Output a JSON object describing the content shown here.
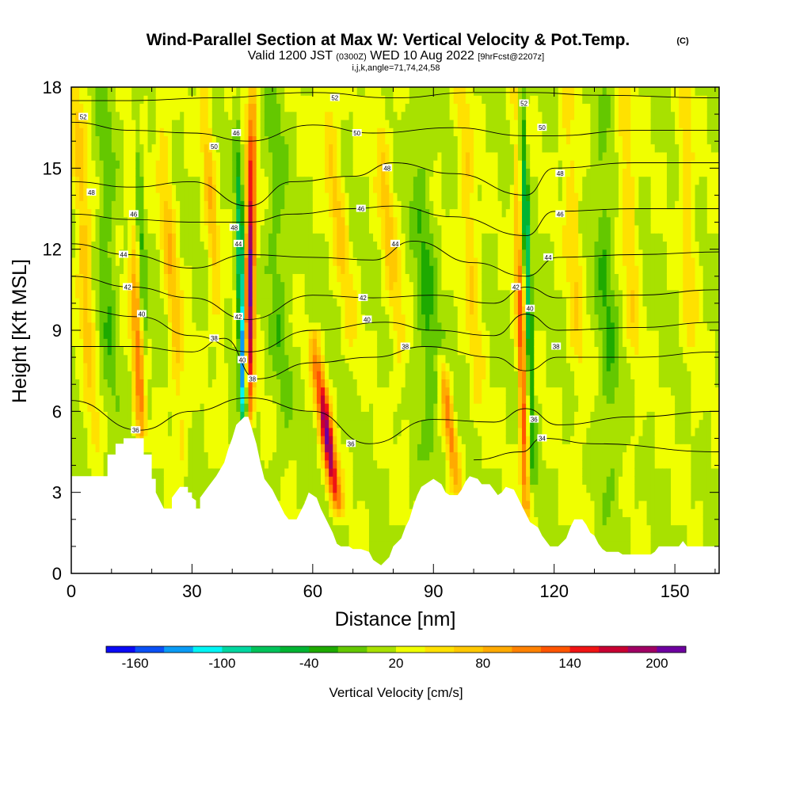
{
  "chart_data": {
    "type": "heatmap",
    "title": "Wind-Parallel Section at Max W: Vertical Velocity & Pot.Temp.",
    "title_badge": "(C)",
    "subtitle_main_a": "Valid 1200 JST",
    "subtitle_small_a": "(0300Z)",
    "subtitle_main_b": "WED 10 Aug 2022",
    "subtitle_small_b": "[9hrFcst@2207z]",
    "subtitle_line3": "i,j,k,angle=71,74,24,58",
    "xlabel": "Distance [nm]",
    "ylabel": "Height [Kft MSL]",
    "xlim": [
      0,
      161
    ],
    "ylim": [
      0,
      18
    ],
    "x_ticks": [
      0,
      30,
      60,
      90,
      120,
      150
    ],
    "x_tick_labels": [
      "0",
      "30",
      "60",
      "90",
      "120",
      "150"
    ],
    "y_ticks": [
      0,
      3,
      6,
      9,
      12,
      15,
      18
    ],
    "y_tick_labels": [
      "0",
      "3",
      "6",
      "9",
      "12",
      "15",
      "18"
    ],
    "colorbar": {
      "label": "Vertical Velocity [cm/s]",
      "min": -180,
      "max": 220,
      "colors": [
        "#0a0af5",
        "#0a50f5",
        "#0a9bf5",
        "#00f5f5",
        "#00d7a0",
        "#00c35a",
        "#00b432",
        "#1eaa00",
        "#64c800",
        "#a8e100",
        "#f0ff00",
        "#ffe100",
        "#ffc800",
        "#ffaa00",
        "#ff8200",
        "#ff5500",
        "#f01414",
        "#c80032",
        "#a00064",
        "#6e00a0"
      ],
      "tick_values": [
        -160,
        -100,
        -40,
        20,
        80,
        140,
        200
      ],
      "tick_labels": [
        "-160",
        "-100",
        "-40",
        "20",
        "80",
        "140",
        "200"
      ]
    },
    "terrain_profile": [
      [
        0,
        3.6
      ],
      [
        9,
        3.6
      ],
      [
        9,
        4.4
      ],
      [
        11,
        4.4
      ],
      [
        11,
        4.8
      ],
      [
        13,
        4.8
      ],
      [
        13,
        5.0
      ],
      [
        18,
        5.0
      ],
      [
        18,
        4.4
      ],
      [
        20,
        4.4
      ],
      [
        20,
        3.5
      ],
      [
        21,
        3.5
      ],
      [
        21,
        3.0
      ],
      [
        22,
        2.7
      ],
      [
        23,
        2.4
      ],
      [
        25,
        2.4
      ],
      [
        25,
        2.8
      ],
      [
        27,
        3.2
      ],
      [
        29,
        3.2
      ],
      [
        29,
        3.0
      ],
      [
        30,
        3.0
      ],
      [
        30,
        2.8
      ],
      [
        31,
        2.7
      ],
      [
        31,
        2.4
      ],
      [
        32,
        2.4
      ],
      [
        32,
        2.8
      ],
      [
        34,
        3.2
      ],
      [
        36,
        3.6
      ],
      [
        38,
        4.1
      ],
      [
        39,
        4.6
      ],
      [
        40,
        5.0
      ],
      [
        41,
        5.5
      ],
      [
        43,
        5.8
      ],
      [
        44,
        5.8
      ],
      [
        46,
        4.8
      ],
      [
        47,
        4.1
      ],
      [
        48,
        3.5
      ],
      [
        50,
        3.1
      ],
      [
        51,
        2.8
      ],
      [
        52,
        2.5
      ],
      [
        53,
        2.2
      ],
      [
        54,
        2.0
      ],
      [
        56,
        2.0
      ],
      [
        57,
        2.3
      ],
      [
        58,
        2.6
      ],
      [
        59,
        3.0
      ],
      [
        61,
        2.8
      ],
      [
        62,
        2.4
      ],
      [
        63,
        2.1
      ],
      [
        64,
        1.8
      ],
      [
        65,
        1.5
      ],
      [
        66,
        1.1
      ],
      [
        67,
        1.0
      ],
      [
        69,
        1.0
      ],
      [
        70,
        0.9
      ],
      [
        72,
        0.9
      ],
      [
        74,
        0.8
      ],
      [
        75,
        0.5
      ],
      [
        76,
        0.4
      ],
      [
        77,
        0.3
      ],
      [
        79,
        0.6
      ],
      [
        80,
        1.0
      ],
      [
        82,
        1.3
      ],
      [
        83,
        1.7
      ],
      [
        84,
        2.0
      ],
      [
        85,
        2.5
      ],
      [
        86,
        2.9
      ],
      [
        87,
        3.2
      ],
      [
        90,
        3.5
      ],
      [
        92,
        3.3
      ],
      [
        93,
        3.0
      ],
      [
        94,
        2.9
      ],
      [
        96,
        2.9
      ],
      [
        97,
        3.1
      ],
      [
        98,
        3.4
      ],
      [
        99,
        3.6
      ],
      [
        101,
        3.5
      ],
      [
        102,
        3.3
      ],
      [
        104,
        3.3
      ],
      [
        105,
        3.1
      ],
      [
        106,
        2.9
      ],
      [
        107,
        3.0
      ],
      [
        108,
        3.2
      ],
      [
        110,
        3.1
      ],
      [
        111,
        2.8
      ],
      [
        112,
        2.5
      ],
      [
        113,
        2.2
      ],
      [
        114,
        1.9
      ],
      [
        116,
        1.7
      ],
      [
        117,
        1.4
      ],
      [
        118,
        1.2
      ],
      [
        119,
        1.0
      ],
      [
        121,
        1.0
      ],
      [
        123,
        1.3
      ],
      [
        124,
        1.7
      ],
      [
        125,
        2.0
      ],
      [
        127,
        2.0
      ],
      [
        128,
        1.8
      ],
      [
        129,
        1.5
      ],
      [
        130,
        1.4
      ],
      [
        131,
        1.1
      ],
      [
        132,
        0.9
      ],
      [
        133,
        0.8
      ],
      [
        136,
        0.8
      ],
      [
        137,
        0.7
      ],
      [
        144,
        0.7
      ],
      [
        145,
        0.8
      ],
      [
        146,
        1.0
      ],
      [
        149,
        1.0
      ],
      [
        151,
        1.0
      ],
      [
        152,
        1.2
      ],
      [
        153,
        1.0
      ],
      [
        160,
        1.0
      ],
      [
        161,
        1.0
      ]
    ],
    "w_features": [
      {
        "x0": 44,
        "x1": 45,
        "amp": 190,
        "width": 1.2,
        "y_from": 5.6,
        "y_to": 18,
        "peak": 11
      },
      {
        "x0": 43,
        "x1": 41,
        "amp": -175,
        "width": 0.9,
        "y_from": 5.8,
        "y_to": 18,
        "peak": 8
      },
      {
        "x0": 17.5,
        "x1": 14,
        "amp": 90,
        "width": 1.5,
        "y_from": 5,
        "y_to": 18,
        "peak": 7
      },
      {
        "x0": 19,
        "x1": 16,
        "amp": -45,
        "width": 1.0,
        "y_from": 5,
        "y_to": 18,
        "peak": 12
      },
      {
        "x0": 66,
        "x1": 60,
        "amp": 175,
        "width": 1.6,
        "y_from": 2.5,
        "y_to": 9,
        "peak": 5
      },
      {
        "x0": 96,
        "x1": 92,
        "amp": 95,
        "width": 1.3,
        "y_from": 3,
        "y_to": 8,
        "peak": 5.5
      },
      {
        "x0": 113,
        "x1": 110,
        "amp": 115,
        "width": 1.0,
        "y_from": 2.3,
        "y_to": 18,
        "peak": 7
      },
      {
        "x0": 115,
        "x1": 112,
        "amp": -95,
        "width": 0.8,
        "y_from": 3.5,
        "y_to": 18,
        "peak": 11
      },
      {
        "x0": 6,
        "x1": 1,
        "amp": 55,
        "width": 1.8,
        "y_from": 3.6,
        "y_to": 18,
        "peak": 12
      },
      {
        "x0": 28,
        "x1": 22,
        "amp": 55,
        "width": 1.8,
        "y_from": 4,
        "y_to": 18,
        "peak": 11
      },
      {
        "x0": 38,
        "x1": 33,
        "amp": 50,
        "width": 1.5,
        "y_from": 5,
        "y_to": 18,
        "peak": 14
      },
      {
        "x0": 71,
        "x1": 63,
        "amp": 50,
        "width": 2.0,
        "y_from": 7,
        "y_to": 18,
        "peak": 14
      },
      {
        "x0": 83,
        "x1": 76,
        "amp": 45,
        "width": 2.0,
        "y_from": 5,
        "y_to": 18,
        "peak": 13
      },
      {
        "x0": 102,
        "x1": 97,
        "amp": 45,
        "width": 1.8,
        "y_from": 4,
        "y_to": 18,
        "peak": 13
      },
      {
        "x0": 128,
        "x1": 123,
        "amp": 40,
        "width": 2.0,
        "y_from": 2,
        "y_to": 18,
        "peak": 13
      },
      {
        "x0": 142,
        "x1": 137,
        "amp": 40,
        "width": 2.0,
        "y_from": 3,
        "y_to": 18,
        "peak": 14
      },
      {
        "x0": 156,
        "x1": 152,
        "amp": 35,
        "width": 2.0,
        "y_from": 3,
        "y_to": 18,
        "peak": 14
      },
      {
        "x0": 10,
        "x1": 8,
        "amp": -35,
        "width": 2.0,
        "y_from": 4,
        "y_to": 18,
        "peak": 12
      },
      {
        "x0": 53,
        "x1": 50,
        "amp": -30,
        "width": 2.5,
        "y_from": 3,
        "y_to": 18,
        "peak": 12
      },
      {
        "x0": 90,
        "x1": 86,
        "amp": -40,
        "width": 2.5,
        "y_from": 4,
        "y_to": 18,
        "peak": 10
      },
      {
        "x0": 135,
        "x1": 131,
        "amp": -35,
        "width": 2.5,
        "y_from": 2,
        "y_to": 18,
        "peak": 10
      }
    ],
    "theta_levels": [
      34,
      36,
      38,
      40,
      42,
      44,
      46,
      48,
      50,
      52
    ],
    "theta_lines": [
      {
        "level": 52,
        "points": [
          [
            0,
            17.5
          ],
          [
            15,
            17.5
          ],
          [
            35,
            17.6
          ],
          [
            60,
            17.8
          ],
          [
            80,
            17.6
          ],
          [
            100,
            17.8
          ],
          [
            115,
            17.8
          ],
          [
            130,
            17.7
          ],
          [
            161,
            17.6
          ]
        ]
      },
      {
        "level": 50,
        "points": [
          [
            0,
            16.7
          ],
          [
            15,
            16.4
          ],
          [
            30,
            16.3
          ],
          [
            44,
            16.0
          ],
          [
            60,
            16.6
          ],
          [
            75,
            16.3
          ],
          [
            95,
            16.5
          ],
          [
            113,
            16.2
          ],
          [
            120,
            16.2
          ],
          [
            140,
            16.4
          ],
          [
            161,
            16.4
          ]
        ]
      },
      {
        "level": 48,
        "points": [
          [
            0,
            14.5
          ],
          [
            15,
            14.3
          ],
          [
            30,
            14.5
          ],
          [
            44,
            13.6
          ],
          [
            55,
            14.5
          ],
          [
            70,
            14.7
          ],
          [
            80,
            15.2
          ],
          [
            95,
            14.8
          ],
          [
            113,
            14.0
          ],
          [
            120,
            15.0
          ],
          [
            140,
            15.2
          ],
          [
            161,
            15.2
          ]
        ]
      },
      {
        "level": 46,
        "points": [
          [
            0,
            13.3
          ],
          [
            15,
            13.1
          ],
          [
            30,
            13.0
          ],
          [
            44,
            13.0
          ],
          [
            55,
            13.3
          ],
          [
            70,
            13.5
          ],
          [
            80,
            13.6
          ],
          [
            95,
            13.2
          ],
          [
            113,
            12.5
          ],
          [
            120,
            13.4
          ],
          [
            140,
            13.5
          ],
          [
            161,
            13.5
          ]
        ]
      },
      {
        "level": 44,
        "points": [
          [
            0,
            12.2
          ],
          [
            14,
            11.8
          ],
          [
            30,
            11.3
          ],
          [
            44,
            11.8
          ],
          [
            60,
            11.7
          ],
          [
            75,
            11.6
          ],
          [
            85,
            12.3
          ],
          [
            100,
            11.5
          ],
          [
            113,
            11.0
          ],
          [
            121,
            11.7
          ],
          [
            140,
            11.8
          ],
          [
            161,
            11.9
          ]
        ]
      },
      {
        "level": 42,
        "points": [
          [
            0,
            11.0
          ],
          [
            15,
            10.6
          ],
          [
            30,
            10.2
          ],
          [
            44,
            9.4
          ],
          [
            60,
            10.3
          ],
          [
            75,
            10.2
          ],
          [
            90,
            10.3
          ],
          [
            105,
            10.0
          ],
          [
            113,
            10.6
          ],
          [
            121,
            10.2
          ],
          [
            140,
            10.3
          ],
          [
            161,
            10.5
          ]
        ]
      },
      {
        "level": 40,
        "points": [
          [
            0,
            9.8
          ],
          [
            17,
            9.5
          ],
          [
            30,
            8.8
          ],
          [
            44,
            8.2
          ],
          [
            60,
            9.0
          ],
          [
            78,
            9.3
          ],
          [
            90,
            9.0
          ],
          [
            105,
            8.8
          ],
          [
            113,
            9.6
          ],
          [
            121,
            9.0
          ],
          [
            140,
            9.1
          ],
          [
            161,
            9.3
          ]
        ]
      },
      {
        "level": 38,
        "points": [
          [
            0,
            8.4
          ],
          [
            15,
            8.4
          ],
          [
            30,
            8.2
          ],
          [
            38,
            8.7
          ],
          [
            46,
            7.2
          ],
          [
            60,
            7.8
          ],
          [
            75,
            8.0
          ],
          [
            88,
            8.4
          ],
          [
            105,
            8.0
          ],
          [
            113,
            7.5
          ],
          [
            121,
            8.0
          ],
          [
            140,
            8.0
          ],
          [
            161,
            8.2
          ]
        ]
      },
      {
        "level": 36,
        "points": [
          [
            0,
            6.4
          ],
          [
            17,
            5.3
          ],
          [
            30,
            6.0
          ],
          [
            44,
            6.5
          ],
          [
            60,
            6.0
          ],
          [
            74,
            4.8
          ],
          [
            90,
            5.7
          ],
          [
            105,
            5.6
          ],
          [
            113,
            6.1
          ],
          [
            121,
            5.5
          ],
          [
            140,
            5.8
          ],
          [
            161,
            6.0
          ]
        ]
      },
      {
        "level": 34,
        "points": [
          [
            100,
            4.2
          ],
          [
            112,
            4.5
          ],
          [
            117,
            5.0
          ],
          [
            130,
            4.8
          ],
          [
            161,
            4.5
          ]
        ]
      }
    ],
    "theta_labels": [
      {
        "text": "52",
        "x": 3,
        "y": 16.9
      },
      {
        "text": "48",
        "x": 5,
        "y": 14.1
      },
      {
        "text": "46",
        "x": 15.5,
        "y": 13.3
      },
      {
        "text": "44",
        "x": 13,
        "y": 11.8
      },
      {
        "text": "42",
        "x": 14,
        "y": 10.6
      },
      {
        "text": "40",
        "x": 17.5,
        "y": 9.6
      },
      {
        "text": "36",
        "x": 16,
        "y": 5.3
      },
      {
        "text": "50",
        "x": 35.5,
        "y": 15.8
      },
      {
        "text": "46",
        "x": 41,
        "y": 16.3
      },
      {
        "text": "48",
        "x": 40.5,
        "y": 12.8
      },
      {
        "text": "44",
        "x": 41.5,
        "y": 12.2
      },
      {
        "text": "42",
        "x": 41.5,
        "y": 9.5
      },
      {
        "text": "40",
        "x": 42.5,
        "y": 7.9
      },
      {
        "text": "38",
        "x": 35.5,
        "y": 8.7
      },
      {
        "text": "38",
        "x": 45,
        "y": 7.2
      },
      {
        "text": "52",
        "x": 65.5,
        "y": 17.6
      },
      {
        "text": "50",
        "x": 71,
        "y": 16.3
      },
      {
        "text": "48",
        "x": 78.5,
        "y": 15.0
      },
      {
        "text": "46",
        "x": 72,
        "y": 13.5
      },
      {
        "text": "44",
        "x": 80.5,
        "y": 12.2
      },
      {
        "text": "42",
        "x": 72.5,
        "y": 10.2
      },
      {
        "text": "40",
        "x": 73.5,
        "y": 9.4
      },
      {
        "text": "38",
        "x": 83,
        "y": 8.4
      },
      {
        "text": "36",
        "x": 69.5,
        "y": 4.8
      },
      {
        "text": "52",
        "x": 112.5,
        "y": 17.4
      },
      {
        "text": "50",
        "x": 117,
        "y": 16.5
      },
      {
        "text": "48",
        "x": 121.5,
        "y": 14.8
      },
      {
        "text": "46",
        "x": 121.5,
        "y": 13.3
      },
      {
        "text": "44",
        "x": 118.5,
        "y": 11.7
      },
      {
        "text": "42",
        "x": 110.5,
        "y": 10.6
      },
      {
        "text": "40",
        "x": 114,
        "y": 9.8
      },
      {
        "text": "38",
        "x": 120.5,
        "y": 8.4
      },
      {
        "text": "36",
        "x": 115,
        "y": 5.7
      },
      {
        "text": "34",
        "x": 117,
        "y": 5.0
      }
    ]
  }
}
